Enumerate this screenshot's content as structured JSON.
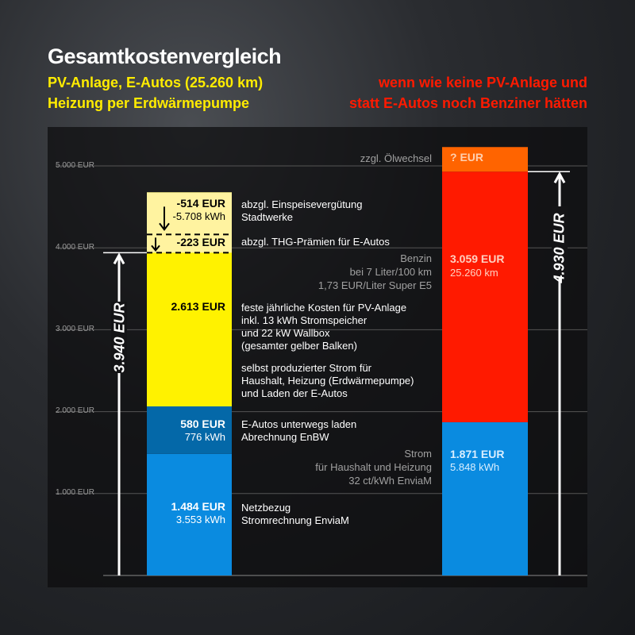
{
  "header": {
    "title": "Gesamtkostenvergleich",
    "subtitle1": "PV-Anlage, E-Autos (25.260 km)",
    "subtitle2": "Heizung per Erdwärmepumpe",
    "compare1": "wenn wie keine PV-Anlage und",
    "compare2": "statt E-Autos noch Benziner hätten"
  },
  "chart_data": {
    "type": "bar",
    "stacked": true,
    "unit": "EUR",
    "ylim": [
      0,
      5000
    ],
    "yticks": [
      "1.000 EUR",
      "2.000 EUR",
      "3.000 EUR",
      "4.000 EUR",
      "5.000 EUR"
    ],
    "left": {
      "total": 3940,
      "total_label": "3.940 EUR",
      "segments": [
        {
          "name": "Netzbezug",
          "value": 1484,
          "color": "#0a8be0",
          "label": "1.484 EUR",
          "sub": "3.553 kWh",
          "desc1": "Netzbezug",
          "desc2": "Stromrechnung EnviaM"
        },
        {
          "name": "E-Autos unterwegs laden",
          "value": 580,
          "color": "#0468a8",
          "label": "580 EUR",
          "sub": "776 kWh",
          "desc1": "E-Autos unterwegs laden",
          "desc2": "Abrechnung EnBW"
        },
        {
          "name": "PV-Anlage",
          "value": 2613,
          "color": "#fff200",
          "label": "2.613 EUR",
          "desc1": "feste jährliche Kosten für PV-Anlage",
          "desc2": "inkl. 13 kWh Stromspeicher",
          "desc3": "und 22 kW Wallbox",
          "desc4": "(gesamter gelber Balken)",
          "desc5": "selbst produzierter Strom für",
          "desc6": "Haushalt, Heizung (Erdwärmepumpe)",
          "desc7": "und Laden der E-Autos"
        }
      ],
      "deductions": [
        {
          "value": -514,
          "label": "-514 EUR",
          "sub": "-5.708 kWh",
          "desc1": "abzgl. Einspeisevergütung",
          "desc2": "Stadtwerke"
        },
        {
          "value": -223,
          "label": "-223 EUR",
          "desc1": "abzgl. THG-Prämien für E-Autos"
        }
      ],
      "deduction_color": "#fff3a0"
    },
    "right": {
      "total": 4930,
      "total_label": "4.930 EUR",
      "segments": [
        {
          "name": "Strom",
          "value": 1871,
          "color": "#0a8be0",
          "label": "1.871 EUR",
          "sub": "5.848 kWh",
          "desc1": "Strom",
          "desc2": "für Haushalt und Heizung",
          "desc3": "32 ct/kWh EnviaM"
        },
        {
          "name": "Benzin",
          "value": 3059,
          "color": "#ff1a00",
          "label": "3.059 EUR",
          "sub": "25.260 km",
          "desc1": "Benzin",
          "desc2": "bei 7 Liter/100 km",
          "desc3": "1,73 EUR/Liter Super E5"
        },
        {
          "name": "Ölwechsel",
          "value": null,
          "color": "#ff6400",
          "label": "? EUR",
          "desc1": "zzgl. Ölwechsel"
        }
      ]
    }
  }
}
